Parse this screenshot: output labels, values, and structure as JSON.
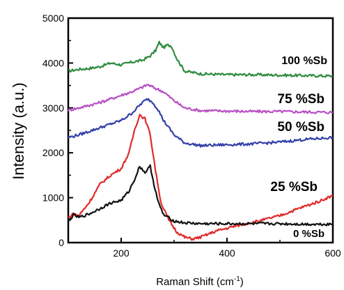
{
  "chart_data": {
    "type": "line",
    "title": "",
    "xlabel": "Raman Shift (cm",
    "xlabel_sup": "-1",
    "xlabel_close": ")",
    "ylabel": "Intensity (a.u.)",
    "xlim": [
      100,
      600
    ],
    "ylim": [
      0,
      5000
    ],
    "x_ticks": [
      200,
      400,
      600
    ],
    "y_ticks": [
      0,
      1000,
      2000,
      3000,
      4000,
      5000
    ],
    "grid": false,
    "legend": "inline labels at right",
    "series": [
      {
        "name": "100 %Sb",
        "color": "#2e8b3e",
        "x": [
          100,
          120,
          140,
          160,
          180,
          200,
          220,
          240,
          255,
          265,
          272,
          280,
          287,
          295,
          305,
          320,
          350,
          400,
          450,
          500,
          550,
          600
        ],
        "y": [
          3820,
          3860,
          3880,
          3920,
          4000,
          3960,
          4020,
          4060,
          4160,
          4280,
          4460,
          4340,
          4400,
          4380,
          4100,
          3820,
          3760,
          3740,
          3740,
          3730,
          3720,
          3710
        ]
      },
      {
        "name": "75 %Sb",
        "color": "#b84fc4",
        "x": [
          100,
          120,
          140,
          160,
          180,
          200,
          220,
          240,
          250,
          260,
          280,
          300,
          320,
          350,
          400,
          450,
          500,
          550,
          600
        ],
        "y": [
          2950,
          3000,
          3060,
          3120,
          3200,
          3280,
          3360,
          3460,
          3520,
          3460,
          3360,
          3160,
          3000,
          2940,
          2930,
          2920,
          2920,
          2910,
          2900
        ]
      },
      {
        "name": "50 %Sb",
        "color": "#3340a8",
        "x": [
          100,
          120,
          140,
          160,
          180,
          200,
          220,
          240,
          250,
          260,
          270,
          280,
          300,
          320,
          350,
          400,
          450,
          500,
          550,
          600
        ],
        "y": [
          2340,
          2400,
          2480,
          2560,
          2640,
          2720,
          2880,
          3120,
          3200,
          3120,
          2960,
          2720,
          2400,
          2220,
          2160,
          2180,
          2200,
          2240,
          2300,
          2340
        ]
      },
      {
        "name": "25 %Sb",
        "color": "#e02a2a",
        "x": [
          100,
          110,
          120,
          140,
          160,
          180,
          200,
          215,
          225,
          235,
          245,
          255,
          265,
          275,
          290,
          305,
          320,
          335,
          350,
          380,
          420,
          460,
          500,
          540,
          570,
          600
        ],
        "y": [
          560,
          640,
          600,
          900,
          1300,
          1500,
          1650,
          2000,
          2500,
          2850,
          2760,
          2400,
          1600,
          900,
          500,
          240,
          120,
          80,
          120,
          260,
          380,
          480,
          600,
          780,
          900,
          1050
        ]
      },
      {
        "name": "0 %Sb",
        "color": "#111111",
        "x": [
          100,
          110,
          120,
          140,
          160,
          180,
          200,
          215,
          225,
          235,
          245,
          255,
          262,
          270,
          280,
          300,
          320,
          350,
          400,
          450,
          500,
          550,
          600
        ],
        "y": [
          460,
          620,
          560,
          640,
          760,
          880,
          940,
          1150,
          1400,
          1700,
          1560,
          1700,
          1300,
          900,
          620,
          480,
          440,
          420,
          420,
          420,
          420,
          410,
          410
        ]
      }
    ]
  }
}
